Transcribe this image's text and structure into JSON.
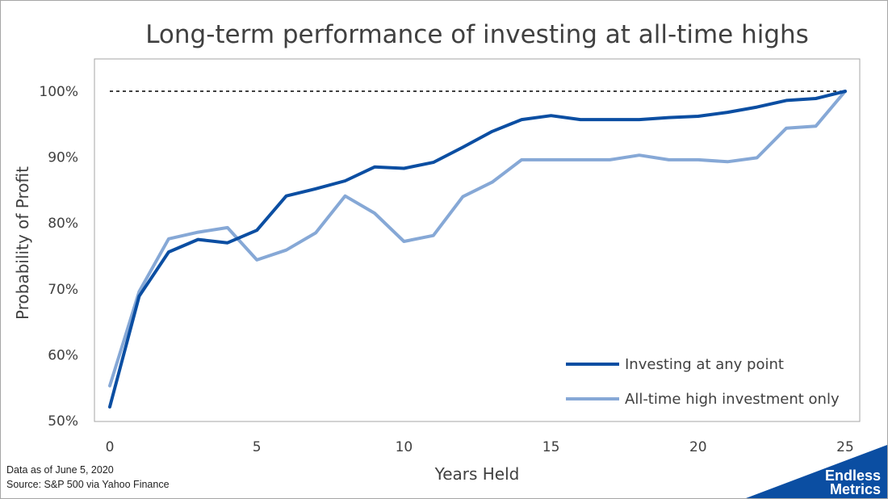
{
  "chart_data": {
    "type": "line",
    "title": "Long-term performance of investing at all-time highs",
    "xlabel": "Years Held",
    "ylabel": "Probability of Profit",
    "xlim": [
      0,
      25
    ],
    "ylim": [
      50,
      100
    ],
    "x_ticks": [
      "0",
      "5",
      "10",
      "15",
      "20",
      "25"
    ],
    "y_ticks": [
      "50%",
      "60%",
      "70%",
      "80%",
      "90%",
      "100%"
    ],
    "x": [
      0,
      1,
      2,
      3,
      4,
      5,
      6,
      7,
      8,
      9,
      10,
      11,
      12,
      13,
      14,
      15,
      16,
      17,
      18,
      19,
      20,
      21,
      22,
      23,
      24,
      25
    ],
    "series": [
      {
        "name": "Investing at any point",
        "values": [
          52.1,
          68.9,
          75.6,
          77.5,
          77.0,
          78.9,
          84.1,
          85.2,
          86.4,
          88.5,
          88.3,
          89.2,
          91.5,
          93.9,
          95.7,
          96.3,
          95.7,
          95.7,
          95.7,
          96.0,
          96.2,
          96.8,
          97.6,
          98.6,
          98.9,
          100.0
        ]
      },
      {
        "name": "All-time high investment only",
        "values": [
          55.3,
          69.6,
          77.6,
          78.6,
          79.3,
          74.4,
          75.9,
          78.5,
          84.1,
          81.5,
          77.2,
          78.1,
          84.0,
          86.2,
          89.6,
          89.6,
          89.6,
          89.6,
          90.3,
          89.6,
          89.6,
          89.3,
          89.9,
          94.4,
          94.7,
          100.0
        ]
      }
    ],
    "reference_line": {
      "y": 100,
      "style": "dashed"
    },
    "legend_position": "bottom-right",
    "grid": false,
    "colors": {
      "series_0": "#0B4EA2",
      "series_1": "#86A8D6",
      "reference": "#000000",
      "axis_text": "#404040"
    }
  },
  "footnote": {
    "line1": "Data as of June 5, 2020",
    "line2": "Source: S&P 500 via Yahoo Finance"
  },
  "logo": {
    "line1": "Endless",
    "line2": "Metrics",
    "color": "#0B4EA2"
  }
}
